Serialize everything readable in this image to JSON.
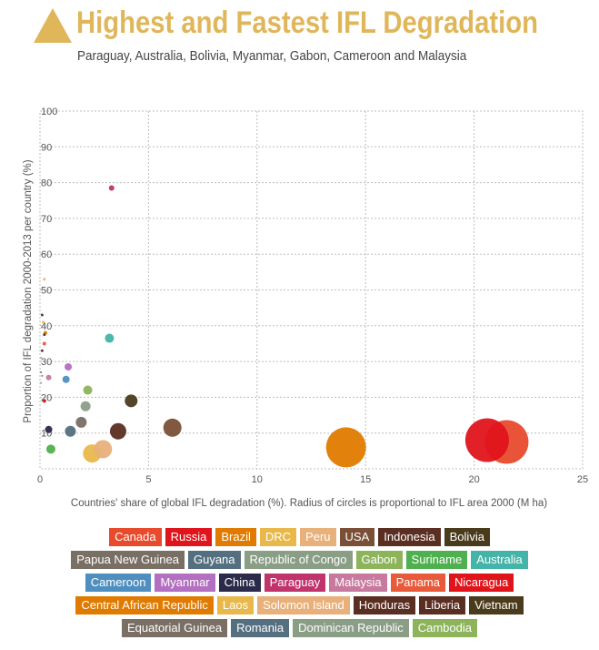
{
  "header": {
    "title": "Highest and Fastest IFL Degradation",
    "subtitle": "Paraguay, Australia, Bolivia, Myanmar, Gabon, Cameroon and Malaysia",
    "accent_color": "#e0b65a",
    "icon": "triangle-icon"
  },
  "chart_data": {
    "type": "scatter",
    "title": "Highest and Fastest IFL Degradation",
    "subtitle": "Paraguay, Australia, Bolivia, Myanmar, Gabon, Cameroon and Malaysia",
    "xlabel": "Countries' share of global IFL degradation (%). Radius of circles is proportional to IFL area 2000 (M ha)",
    "ylabel": "Proportion of IFL degradation 2000-2013 per country (%)",
    "xlim": [
      0,
      25
    ],
    "ylim": [
      0,
      100
    ],
    "x_ticks": [
      "0",
      "5",
      "10",
      "15",
      "20",
      "25"
    ],
    "y_ticks": [
      "10",
      "20",
      "30",
      "40",
      "50",
      "60",
      "70",
      "80",
      "90",
      "100"
    ],
    "grid": true,
    "legend_position": "bottom",
    "points": [
      {
        "name": "Canada",
        "x": 21.5,
        "y": 7.5,
        "r": 24,
        "color": "#e84a2c"
      },
      {
        "name": "Russia",
        "x": 20.6,
        "y": 8,
        "r": 24,
        "color": "#e0141b"
      },
      {
        "name": "Brazil",
        "x": 14.1,
        "y": 6,
        "r": 22,
        "color": "#e07b00"
      },
      {
        "name": "DRC",
        "x": 2.4,
        "y": 4.3,
        "r": 10,
        "color": "#e8b84b"
      },
      {
        "name": "Peru",
        "x": 2.9,
        "y": 5.5,
        "r": 10,
        "color": "#e8b07a"
      },
      {
        "name": "USA",
        "x": 6.1,
        "y": 11.5,
        "r": 10,
        "color": "#7a4f36"
      },
      {
        "name": "Indonesia",
        "x": 3.6,
        "y": 10.5,
        "r": 9,
        "color": "#5b2e22"
      },
      {
        "name": "Bolivia",
        "x": 4.2,
        "y": 19,
        "r": 7,
        "color": "#4a3b1c"
      },
      {
        "name": "Papua New Guinea",
        "x": 1.9,
        "y": 13,
        "r": 6,
        "color": "#7a6f65"
      },
      {
        "name": "Guyana",
        "x": 1.4,
        "y": 10.5,
        "r": 6,
        "color": "#546f80"
      },
      {
        "name": "Republic of Congo",
        "x": 2.1,
        "y": 17.5,
        "r": 5.5,
        "color": "#8a9e86"
      },
      {
        "name": "Gabon",
        "x": 2.2,
        "y": 22,
        "r": 5,
        "color": "#8db35b"
      },
      {
        "name": "Suriname",
        "x": 0.5,
        "y": 5.5,
        "r": 5,
        "color": "#4fb04f"
      },
      {
        "name": "Australia",
        "x": 3.2,
        "y": 36.5,
        "r": 5,
        "color": "#44b3a8"
      },
      {
        "name": "Cameroon",
        "x": 1.2,
        "y": 25,
        "r": 4,
        "color": "#4f8fc0"
      },
      {
        "name": "Myanmar",
        "x": 1.3,
        "y": 28.5,
        "r": 4,
        "color": "#b36fc0"
      },
      {
        "name": "China",
        "x": 0.4,
        "y": 11,
        "r": 4,
        "color": "#2b2a4a"
      },
      {
        "name": "Paraguay",
        "x": 3.3,
        "y": 78.5,
        "r": 3,
        "color": "#c0336b"
      },
      {
        "name": "Malaysia",
        "x": 0.4,
        "y": 25.5,
        "r": 3,
        "color": "#c87a9e"
      },
      {
        "name": "Panama",
        "x": 0.2,
        "y": 35,
        "r": 2,
        "color": "#e85a3a"
      },
      {
        "name": "Nicaragua",
        "x": 0.2,
        "y": 19,
        "r": 2,
        "color": "#e0141b"
      },
      {
        "name": "Central African Republic",
        "x": 0.25,
        "y": 38,
        "r": 2,
        "color": "#e07b00"
      },
      {
        "name": "Laos",
        "x": 0.15,
        "y": 41,
        "r": 1.5,
        "color": "#e8b84b"
      },
      {
        "name": "Solomon Island",
        "x": 0.2,
        "y": 53,
        "r": 1.5,
        "color": "#e8b07a"
      },
      {
        "name": "Honduras",
        "x": 0.2,
        "y": 37.5,
        "r": 1.5,
        "color": "#5b2e22"
      },
      {
        "name": "Liberia",
        "x": 0.1,
        "y": 33,
        "r": 1.5,
        "color": "#5b2e22"
      },
      {
        "name": "Vietnam",
        "x": 0.1,
        "y": 43,
        "r": 1.5,
        "color": "#4a3b1c"
      },
      {
        "name": "Equatorial Guinea",
        "x": 0.1,
        "y": 26,
        "r": 1,
        "color": "#7a6f65"
      },
      {
        "name": "Romania",
        "x": 0.05,
        "y": 27,
        "r": 1,
        "color": "#546f80"
      },
      {
        "name": "Dominican Republic",
        "x": 0.05,
        "y": 24,
        "r": 1,
        "color": "#8a9e86"
      },
      {
        "name": "Cambodia",
        "x": 0.05,
        "y": 31,
        "r": 1,
        "color": "#8db35b"
      }
    ]
  },
  "legend": {
    "rows": [
      [
        {
          "label": "Canada",
          "color": "#e84a2c"
        },
        {
          "label": "Russia",
          "color": "#e0141b"
        },
        {
          "label": "Brazil",
          "color": "#e07b00"
        },
        {
          "label": "DRC",
          "color": "#e8b84b"
        },
        {
          "label": "Peru",
          "color": "#e8b07a"
        },
        {
          "label": "USA",
          "color": "#7a4f36"
        },
        {
          "label": "Indonesia",
          "color": "#5b2e22"
        },
        {
          "label": "Bolivia",
          "color": "#4a3b1c"
        }
      ],
      [
        {
          "label": "Papua New Guinea",
          "color": "#7a6f65"
        },
        {
          "label": "Guyana",
          "color": "#546f80"
        },
        {
          "label": "Republic of Congo",
          "color": "#8a9e86"
        },
        {
          "label": "Gabon",
          "color": "#8db35b"
        },
        {
          "label": "Suriname",
          "color": "#4fb04f"
        },
        {
          "label": "Australia",
          "color": "#44b3a8"
        }
      ],
      [
        {
          "label": "Cameroon",
          "color": "#4f8fc0"
        },
        {
          "label": "Myanmar",
          "color": "#b36fc0"
        },
        {
          "label": "China",
          "color": "#2b2a4a"
        },
        {
          "label": "Paraguay",
          "color": "#c0336b"
        },
        {
          "label": "Malaysia",
          "color": "#c87a9e"
        },
        {
          "label": "Panama",
          "color": "#e85a3a"
        },
        {
          "label": "Nicaragua",
          "color": "#e0141b"
        }
      ],
      [
        {
          "label": "Central African Republic",
          "color": "#e07b00"
        },
        {
          "label": "Laos",
          "color": "#e8b84b"
        },
        {
          "label": "Solomon Island",
          "color": "#e8b07a"
        },
        {
          "label": "Honduras",
          "color": "#5b2e22"
        },
        {
          "label": "Liberia",
          "color": "#5b2e22"
        },
        {
          "label": "Vietnam",
          "color": "#4a3b1c"
        }
      ],
      [
        {
          "label": "Equatorial Guinea",
          "color": "#7a6f65"
        },
        {
          "label": "Romania",
          "color": "#546f80"
        },
        {
          "label": "Dominican Republic",
          "color": "#8a9e86"
        },
        {
          "label": "Cambodia",
          "color": "#8db35b"
        }
      ]
    ]
  }
}
